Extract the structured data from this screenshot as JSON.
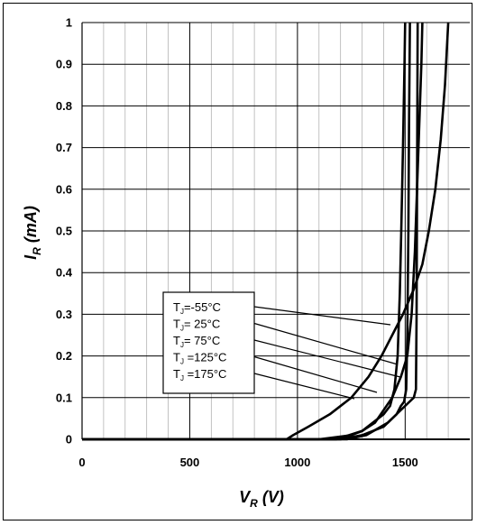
{
  "chart_data": {
    "type": "line",
    "title": "",
    "xlabel": {
      "main": "V",
      "sub": "R",
      "unit": " (V)"
    },
    "ylabel": {
      "main": "I",
      "sub": "R",
      "unit": " (mA)"
    },
    "xlim": [
      0,
      1800
    ],
    "ylim": [
      0,
      1
    ],
    "x_ticks": [
      0,
      500,
      1000,
      1500
    ],
    "x_tick_labels": [
      "0",
      "500",
      "1000",
      "1500"
    ],
    "y_ticks": [
      0,
      0.1,
      0.2,
      0.3,
      0.4,
      0.5,
      0.6,
      0.7,
      0.8,
      0.9,
      1
    ],
    "y_tick_labels": [
      "0",
      "0.1",
      "0.2",
      "0.3",
      "0.4",
      "0.5",
      "0.6",
      "0.7",
      "0.8",
      "0.9",
      "1"
    ],
    "grid": true,
    "legend_position": "center",
    "series": [
      {
        "name": {
          "pre": "T",
          "sub": "J",
          "post": "=-55°C"
        },
        "points": [
          [
            0,
            0
          ],
          [
            1100,
            0
          ],
          [
            1250,
            0.01
          ],
          [
            1300,
            0.02
          ],
          [
            1350,
            0.04
          ],
          [
            1400,
            0.06
          ],
          [
            1430,
            0.08
          ],
          [
            1450,
            0.12
          ],
          [
            1465,
            0.2
          ],
          [
            1475,
            0.35
          ],
          [
            1482,
            0.5
          ],
          [
            1490,
            0.7
          ],
          [
            1497,
            0.9
          ],
          [
            1500,
            1
          ]
        ]
      },
      {
        "name": {
          "pre": "T",
          "sub": "J",
          "post": "= 25°C"
        },
        "points": [
          [
            0,
            0
          ],
          [
            1200,
            0
          ],
          [
            1300,
            0.01
          ],
          [
            1400,
            0.03
          ],
          [
            1460,
            0.06
          ],
          [
            1480,
            0.08
          ],
          [
            1495,
            0.09
          ],
          [
            1505,
            0.12
          ],
          [
            1510,
            0.25
          ],
          [
            1515,
            0.5
          ],
          [
            1518,
            0.75
          ],
          [
            1522,
            1
          ]
        ]
      },
      {
        "name": {
          "pre": "T",
          "sub": "J",
          "post": "= 75°C"
        },
        "points": [
          [
            0,
            0
          ],
          [
            1230,
            0
          ],
          [
            1320,
            0.01
          ],
          [
            1420,
            0.04
          ],
          [
            1500,
            0.08
          ],
          [
            1540,
            0.1
          ],
          [
            1550,
            0.12
          ],
          [
            1553,
            0.3
          ],
          [
            1555,
            0.6
          ],
          [
            1558,
            1
          ]
        ]
      },
      {
        "name": {
          "pre": "T",
          "sub": "J",
          "post": " =125°C"
        },
        "points": [
          [
            0,
            0
          ],
          [
            1180,
            0
          ],
          [
            1240,
            0.01
          ],
          [
            1300,
            0.02
          ],
          [
            1360,
            0.04
          ],
          [
            1400,
            0.07
          ],
          [
            1440,
            0.1
          ],
          [
            1480,
            0.15
          ],
          [
            1510,
            0.2
          ],
          [
            1530,
            0.3
          ],
          [
            1545,
            0.45
          ],
          [
            1555,
            0.6
          ],
          [
            1565,
            0.75
          ],
          [
            1575,
            0.9
          ],
          [
            1580,
            1
          ]
        ]
      },
      {
        "name": {
          "pre": "T",
          "sub": "J",
          "post": " =175°C"
        },
        "points": [
          [
            0,
            0
          ],
          [
            950,
            0
          ],
          [
            980,
            0.01
          ],
          [
            1050,
            0.03
          ],
          [
            1150,
            0.06
          ],
          [
            1250,
            0.1
          ],
          [
            1330,
            0.15
          ],
          [
            1390,
            0.2
          ],
          [
            1440,
            0.25
          ],
          [
            1490,
            0.3
          ],
          [
            1540,
            0.36
          ],
          [
            1580,
            0.42
          ],
          [
            1610,
            0.5
          ],
          [
            1640,
            0.6
          ],
          [
            1665,
            0.72
          ],
          [
            1685,
            0.85
          ],
          [
            1700,
            1
          ]
        ]
      }
    ]
  }
}
